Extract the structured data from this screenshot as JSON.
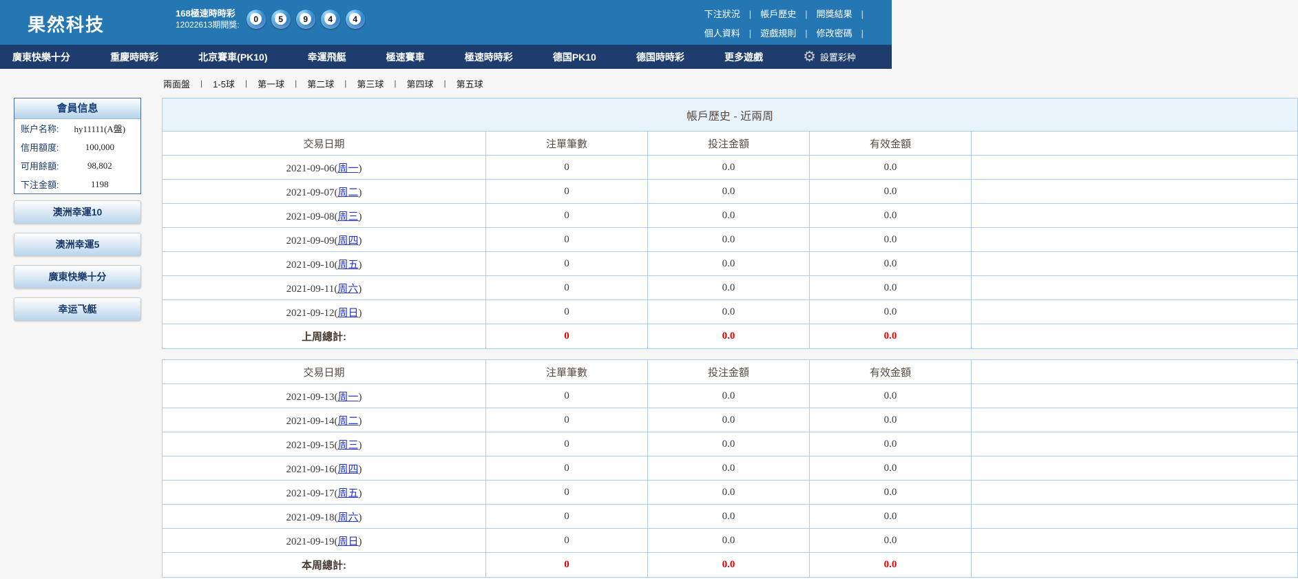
{
  "header": {
    "logo": "果然科技",
    "lottery_name": "168極速時時彩",
    "draw_label": "12022613期開獎:",
    "balls": [
      "0",
      "5",
      "9",
      "4",
      "4"
    ],
    "links_row1": [
      "下注狀況",
      "帳戶歷史",
      "開獎結果"
    ],
    "links_row2": [
      "個人資料",
      "遊戲規則",
      "修改密碼"
    ],
    "separator": "|"
  },
  "nav": {
    "items": [
      "廣東快樂十分",
      "重慶時時彩",
      "北京賽車(PK10)",
      "幸運飛艇",
      "極速賽車",
      "極速時時彩",
      "德国PK10",
      "德国時時彩",
      "更多遊戲"
    ],
    "settings_label": "設置彩种",
    "gear_icon": "⚙"
  },
  "subnav": {
    "items": [
      "兩面盤",
      "1-5球",
      "第一球",
      "第二球",
      "第三球",
      "第四球",
      "第五球"
    ],
    "separator": "|"
  },
  "sidebar": {
    "member_title": "會員信息",
    "fields": [
      {
        "label": "账户名称:",
        "value": "hy11111(A盤)"
      },
      {
        "label": "信用額度:",
        "value": "100,000"
      },
      {
        "label": "可用餘額:",
        "value": "98,802"
      },
      {
        "label": "下注金額:",
        "value": "1198"
      }
    ],
    "buttons": [
      "澳洲幸運10",
      "澳洲幸運5",
      "廣東快樂十分",
      "幸运飞艇"
    ]
  },
  "main": {
    "title": "帳戶歷史 - 近兩周",
    "columns": [
      "交易日期",
      "注單筆數",
      "投注金額",
      "有效金額"
    ],
    "punct": {
      "open": "(",
      "close": ")"
    },
    "week1": {
      "rows": [
        {
          "date": "2021-09-06",
          "weekday": "周一",
          "bets": "0",
          "amount": "0.0",
          "valid": "0.0"
        },
        {
          "date": "2021-09-07",
          "weekday": "周二",
          "bets": "0",
          "amount": "0.0",
          "valid": "0.0"
        },
        {
          "date": "2021-09-08",
          "weekday": "周三",
          "bets": "0",
          "amount": "0.0",
          "valid": "0.0"
        },
        {
          "date": "2021-09-09",
          "weekday": "周四",
          "bets": "0",
          "amount": "0.0",
          "valid": "0.0"
        },
        {
          "date": "2021-09-10",
          "weekday": "周五",
          "bets": "0",
          "amount": "0.0",
          "valid": "0.0"
        },
        {
          "date": "2021-09-11",
          "weekday": "周六",
          "bets": "0",
          "amount": "0.0",
          "valid": "0.0"
        },
        {
          "date": "2021-09-12",
          "weekday": "周日",
          "bets": "0",
          "amount": "0.0",
          "valid": "0.0"
        }
      ],
      "total": {
        "label": "上周總計:",
        "bets": "0",
        "amount": "0.0",
        "valid": "0.0"
      }
    },
    "week2": {
      "rows": [
        {
          "date": "2021-09-13",
          "weekday": "周一",
          "bets": "0",
          "amount": "0.0",
          "valid": "0.0"
        },
        {
          "date": "2021-09-14",
          "weekday": "周二",
          "bets": "0",
          "amount": "0.0",
          "valid": "0.0"
        },
        {
          "date": "2021-09-15",
          "weekday": "周三",
          "bets": "0",
          "amount": "0.0",
          "valid": "0.0"
        },
        {
          "date": "2021-09-16",
          "weekday": "周四",
          "bets": "0",
          "amount": "0.0",
          "valid": "0.0"
        },
        {
          "date": "2021-09-17",
          "weekday": "周五",
          "bets": "0",
          "amount": "0.0",
          "valid": "0.0"
        },
        {
          "date": "2021-09-18",
          "weekday": "周六",
          "bets": "0",
          "amount": "0.0",
          "valid": "0.0"
        },
        {
          "date": "2021-09-19",
          "weekday": "周日",
          "bets": "0",
          "amount": "0.0",
          "valid": "0.0"
        }
      ],
      "total": {
        "label": "本周總計:",
        "bets": "0",
        "amount": "0.0",
        "valid": "0.0"
      }
    }
  },
  "colors": {
    "header_bg": "#2577b3",
    "nav_bg": "#1e3d6e",
    "table_border": "#a9cdec",
    "title_bg": "#e9f3fb",
    "heading_text": "#5a4b40",
    "link_blue": "#2333cc",
    "total_red": "#e60000"
  }
}
